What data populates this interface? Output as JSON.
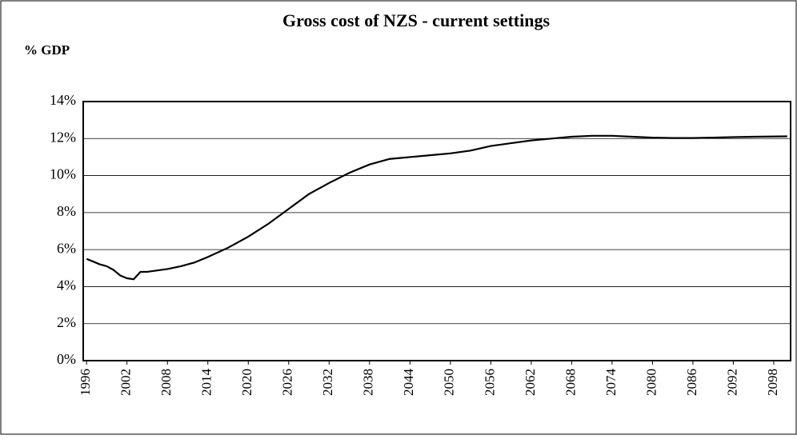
{
  "chart_data": {
    "type": "line",
    "title": "Gross cost of NZS - current settings",
    "y_label": "% GDP",
    "x": [
      1996,
      1997,
      1998,
      1999,
      2000,
      2001,
      2002,
      2003,
      2004,
      2005,
      2008,
      2010,
      2012,
      2014,
      2017,
      2020,
      2023,
      2026,
      2029,
      2032,
      2035,
      2038,
      2041,
      2044,
      2047,
      2050,
      2053,
      2056,
      2059,
      2062,
      2065,
      2068,
      2071,
      2074,
      2077,
      2080,
      2083,
      2086,
      2089,
      2092,
      2095,
      2100
    ],
    "series": [
      {
        "name": "Gross cost of NZS",
        "color": "#000000",
        "values": [
          5.5,
          5.35,
          5.2,
          5.1,
          4.9,
          4.6,
          4.45,
          4.4,
          4.8,
          4.8,
          4.95,
          5.1,
          5.3,
          5.6,
          6.1,
          6.7,
          7.4,
          8.2,
          9.0,
          9.6,
          10.15,
          10.6,
          10.9,
          11.0,
          11.1,
          11.2,
          11.35,
          11.6,
          11.75,
          11.9,
          12.0,
          12.1,
          12.15,
          12.15,
          12.1,
          12.05,
          12.03,
          12.03,
          12.05,
          12.08,
          12.1,
          12.12
        ]
      }
    ],
    "xlim": [
      1995.5,
      2100.5
    ],
    "xticks": [
      1996,
      2002,
      2008,
      2014,
      2020,
      2026,
      2032,
      2038,
      2044,
      2050,
      2056,
      2062,
      2068,
      2074,
      2080,
      2086,
      2092,
      2098
    ],
    "ylim": [
      0,
      14
    ],
    "yticks": [
      {
        "value": 0,
        "label": "0%"
      },
      {
        "value": 2,
        "label": "2%"
      },
      {
        "value": 4,
        "label": "4%"
      },
      {
        "value": 6,
        "label": "6%"
      },
      {
        "value": 8,
        "label": "8%"
      },
      {
        "value": 10,
        "label": "10%"
      },
      {
        "value": 12,
        "label": "12%"
      },
      {
        "value": 14,
        "label": "14%"
      }
    ],
    "grid": true
  }
}
